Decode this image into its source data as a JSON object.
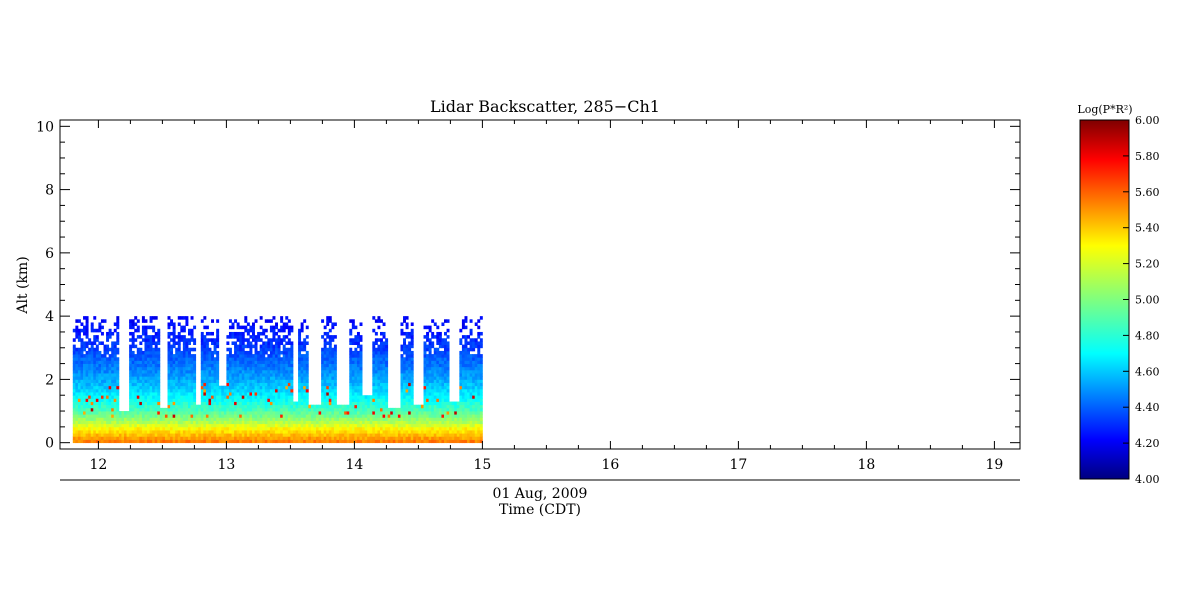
{
  "chart_data": {
    "type": "heatmap",
    "title": "Lidar Backscatter, 285−Ch1",
    "xlabel": "Time (CDT)",
    "date_label": "01 Aug, 2009",
    "ylabel": "Alt (km)",
    "xlim": [
      11.7,
      19.2
    ],
    "ylim": [
      -0.2,
      10.2
    ],
    "x_ticks": [
      "12",
      "13",
      "14",
      "15",
      "16",
      "17",
      "18",
      "19"
    ],
    "y_ticks": [
      "0",
      "2",
      "4",
      "6",
      "8",
      "10"
    ],
    "data_extent": {
      "x": [
        11.8,
        15.0
      ],
      "y": [
        0,
        4.0
      ]
    },
    "colorbar": {
      "label": "Log(P*R²)",
      "min": 4.0,
      "max": 6.0,
      "ticks": [
        "4.00",
        "4.20",
        "4.40",
        "4.60",
        "4.80",
        "5.00",
        "5.20",
        "5.40",
        "5.60",
        "5.80",
        "6.00"
      ],
      "colormap": "jet"
    },
    "profile": [
      {
        "alt": 0.0,
        "value": 5.5
      },
      {
        "alt": 0.2,
        "value": 5.38
      },
      {
        "alt": 0.4,
        "value": 5.26
      },
      {
        "alt": 0.6,
        "value": 5.1
      },
      {
        "alt": 0.8,
        "value": 4.98
      },
      {
        "alt": 1.0,
        "value": 4.88
      },
      {
        "alt": 1.4,
        "value": 4.74
      },
      {
        "alt": 1.8,
        "value": 4.62
      },
      {
        "alt": 2.4,
        "value": 4.48
      },
      {
        "alt": 3.0,
        "value": 4.36
      },
      {
        "alt": 4.0,
        "value": 4.22
      }
    ],
    "gaps": [
      {
        "x": [
          12.15,
          12.22
        ],
        "alt_min": 0.9
      },
      {
        "x": [
          12.47,
          12.52
        ],
        "alt_min": 1.0
      },
      {
        "x": [
          12.74,
          12.78
        ],
        "alt_min": 1.1
      },
      {
        "x": [
          12.92,
          12.98
        ],
        "alt_min": 1.8
      },
      {
        "x": [
          13.5,
          13.55
        ],
        "alt_min": 1.3
      },
      {
        "x": [
          13.62,
          13.72
        ],
        "alt_min": 1.2
      },
      {
        "x": [
          13.85,
          13.95
        ],
        "alt_min": 1.1
      },
      {
        "x": [
          14.05,
          14.12
        ],
        "alt_min": 1.5
      },
      {
        "x": [
          14.25,
          14.35
        ],
        "alt_min": 1.0
      },
      {
        "x": [
          14.45,
          14.52
        ],
        "alt_min": 1.2
      },
      {
        "x": [
          14.72,
          14.8
        ],
        "alt_min": 1.3
      }
    ]
  }
}
